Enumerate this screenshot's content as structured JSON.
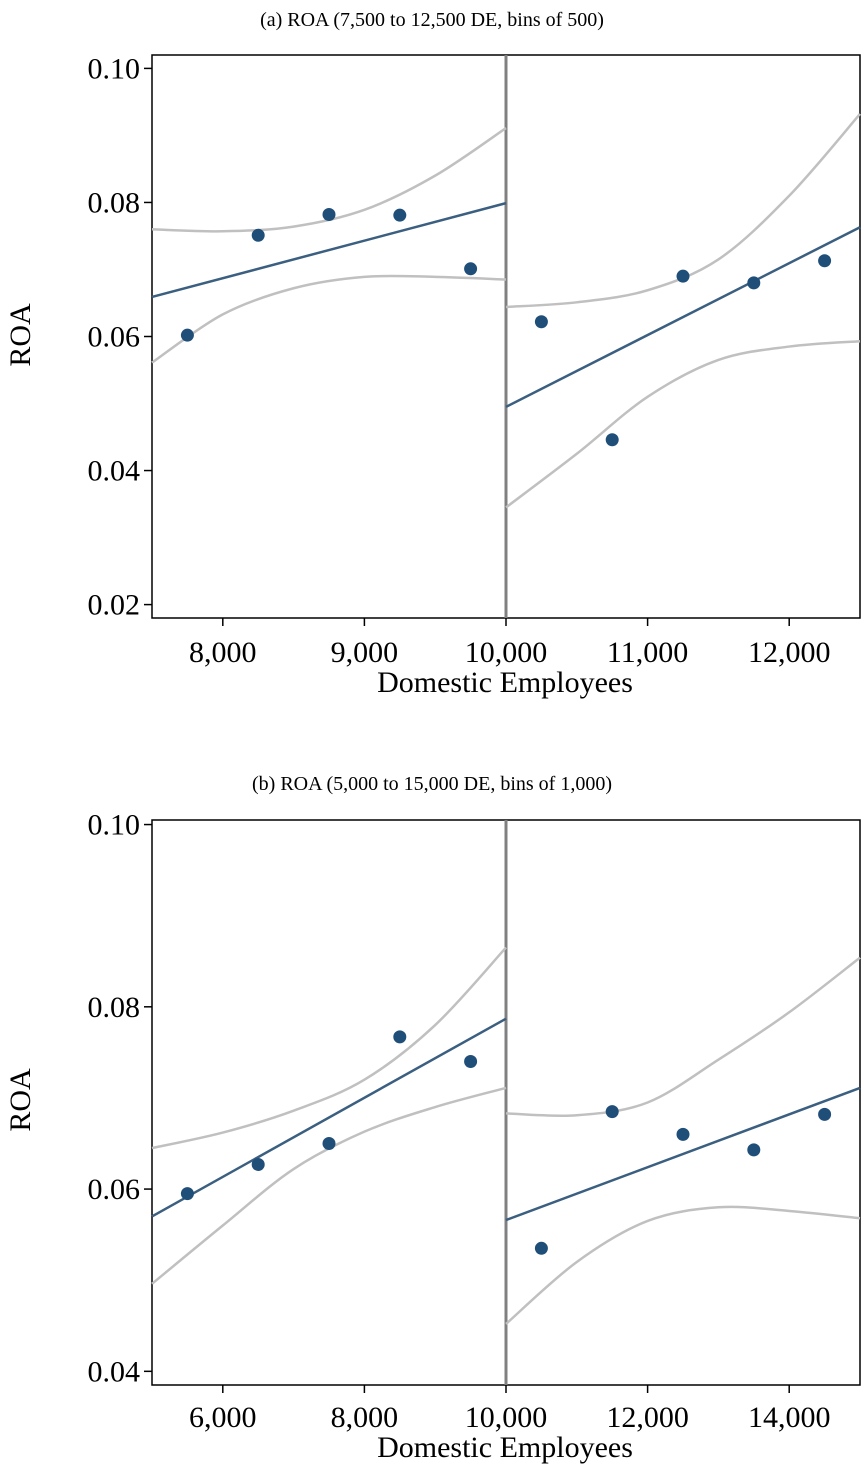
{
  "chart_data": [
    {
      "type": "scatter",
      "title": "(a) ROA (7,500 to 12,500 DE, bins of 500)",
      "xlabel": "Domestic Employees",
      "ylabel": "ROA",
      "xlim": [
        7500,
        12500
      ],
      "ylim": [
        0.018,
        0.102
      ],
      "xticks": [
        8000,
        9000,
        10000,
        11000,
        12000
      ],
      "xtick_labels": [
        "8,000",
        "9,000",
        "10,000",
        "11,000",
        "12,000"
      ],
      "yticks": [
        0.02,
        0.04,
        0.06,
        0.08,
        0.1
      ],
      "ytick_labels": [
        "0.02",
        "0.04",
        "0.06",
        "0.08",
        "0.10"
      ],
      "cutoff": 10000,
      "points": {
        "x": [
          7750,
          8250,
          8750,
          9250,
          9750,
          10250,
          10750,
          11250,
          11750,
          12250
        ],
        "y": [
          0.0602,
          0.0751,
          0.0782,
          0.0781,
          0.0701,
          0.0622,
          0.0446,
          0.069,
          0.068,
          0.0713
        ]
      },
      "fits": [
        {
          "x": [
            7500,
            10000
          ],
          "y": [
            0.0659,
            0.0799
          ],
          "ci_x": [
            7500,
            8000,
            8500,
            9000,
            9500,
            10000
          ],
          "ci_upper": [
            0.076,
            0.0757,
            0.0764,
            0.0789,
            0.084,
            0.0911
          ],
          "ci_lower": [
            0.0561,
            0.0633,
            0.0672,
            0.0689,
            0.0689,
            0.0685
          ]
        },
        {
          "x": [
            10000,
            12500
          ],
          "y": [
            0.0495,
            0.0763
          ],
          "ci_x": [
            10000,
            10500,
            11000,
            11500,
            12000,
            12500
          ],
          "ci_upper": [
            0.0644,
            0.0651,
            0.0669,
            0.0715,
            0.081,
            0.0932
          ],
          "ci_lower": [
            0.0345,
            0.0425,
            0.051,
            0.0565,
            0.0585,
            0.0593
          ]
        }
      ],
      "colors": {
        "points": "#1f4e79",
        "fit": "#3b5f80",
        "ci": "#c0c0c0",
        "cutoff": "#808080"
      }
    },
    {
      "type": "scatter",
      "title": "(b) ROA (5,000 to 15,000 DE, bins of 1,000)",
      "xlabel": "Domestic Employees",
      "ylabel": "ROA",
      "xlim": [
        5000,
        15000
      ],
      "ylim": [
        0.0385,
        0.1005
      ],
      "xticks": [
        6000,
        8000,
        10000,
        12000,
        14000
      ],
      "xtick_labels": [
        "6,000",
        "8,000",
        "10,000",
        "12,000",
        "14,000"
      ],
      "yticks": [
        0.04,
        0.06,
        0.08,
        0.1
      ],
      "ytick_labels": [
        "0.04",
        "0.06",
        "0.08",
        "0.10"
      ],
      "cutoff": 10000,
      "points": {
        "x": [
          5500,
          6500,
          7500,
          8500,
          9500,
          10500,
          11500,
          12500,
          13500,
          14500
        ],
        "y": [
          0.0595,
          0.0627,
          0.065,
          0.0767,
          0.074,
          0.0535,
          0.0685,
          0.066,
          0.0643,
          0.0682
        ]
      },
      "fits": [
        {
          "x": [
            5000,
            10000
          ],
          "y": [
            0.057,
            0.0787
          ],
          "ci_x": [
            5000,
            6000,
            7000,
            8000,
            9000,
            10000
          ],
          "ci_upper": [
            0.0645,
            0.0662,
            0.0686,
            0.072,
            0.078,
            0.0865
          ],
          "ci_lower": [
            0.0496,
            0.056,
            0.0622,
            0.0663,
            0.069,
            0.0711
          ]
        },
        {
          "x": [
            10000,
            15000
          ],
          "y": [
            0.0566,
            0.0711
          ],
          "ci_x": [
            10000,
            11000,
            12000,
            13000,
            14000,
            15000
          ],
          "ci_upper": [
            0.0683,
            0.0681,
            0.0695,
            0.0742,
            0.0794,
            0.0854
          ],
          "ci_lower": [
            0.0452,
            0.052,
            0.0565,
            0.058,
            0.0576,
            0.0568
          ]
        }
      ],
      "colors": {
        "points": "#1f4e79",
        "fit": "#3b5f80",
        "ci": "#c0c0c0",
        "cutoff": "#808080"
      }
    }
  ]
}
